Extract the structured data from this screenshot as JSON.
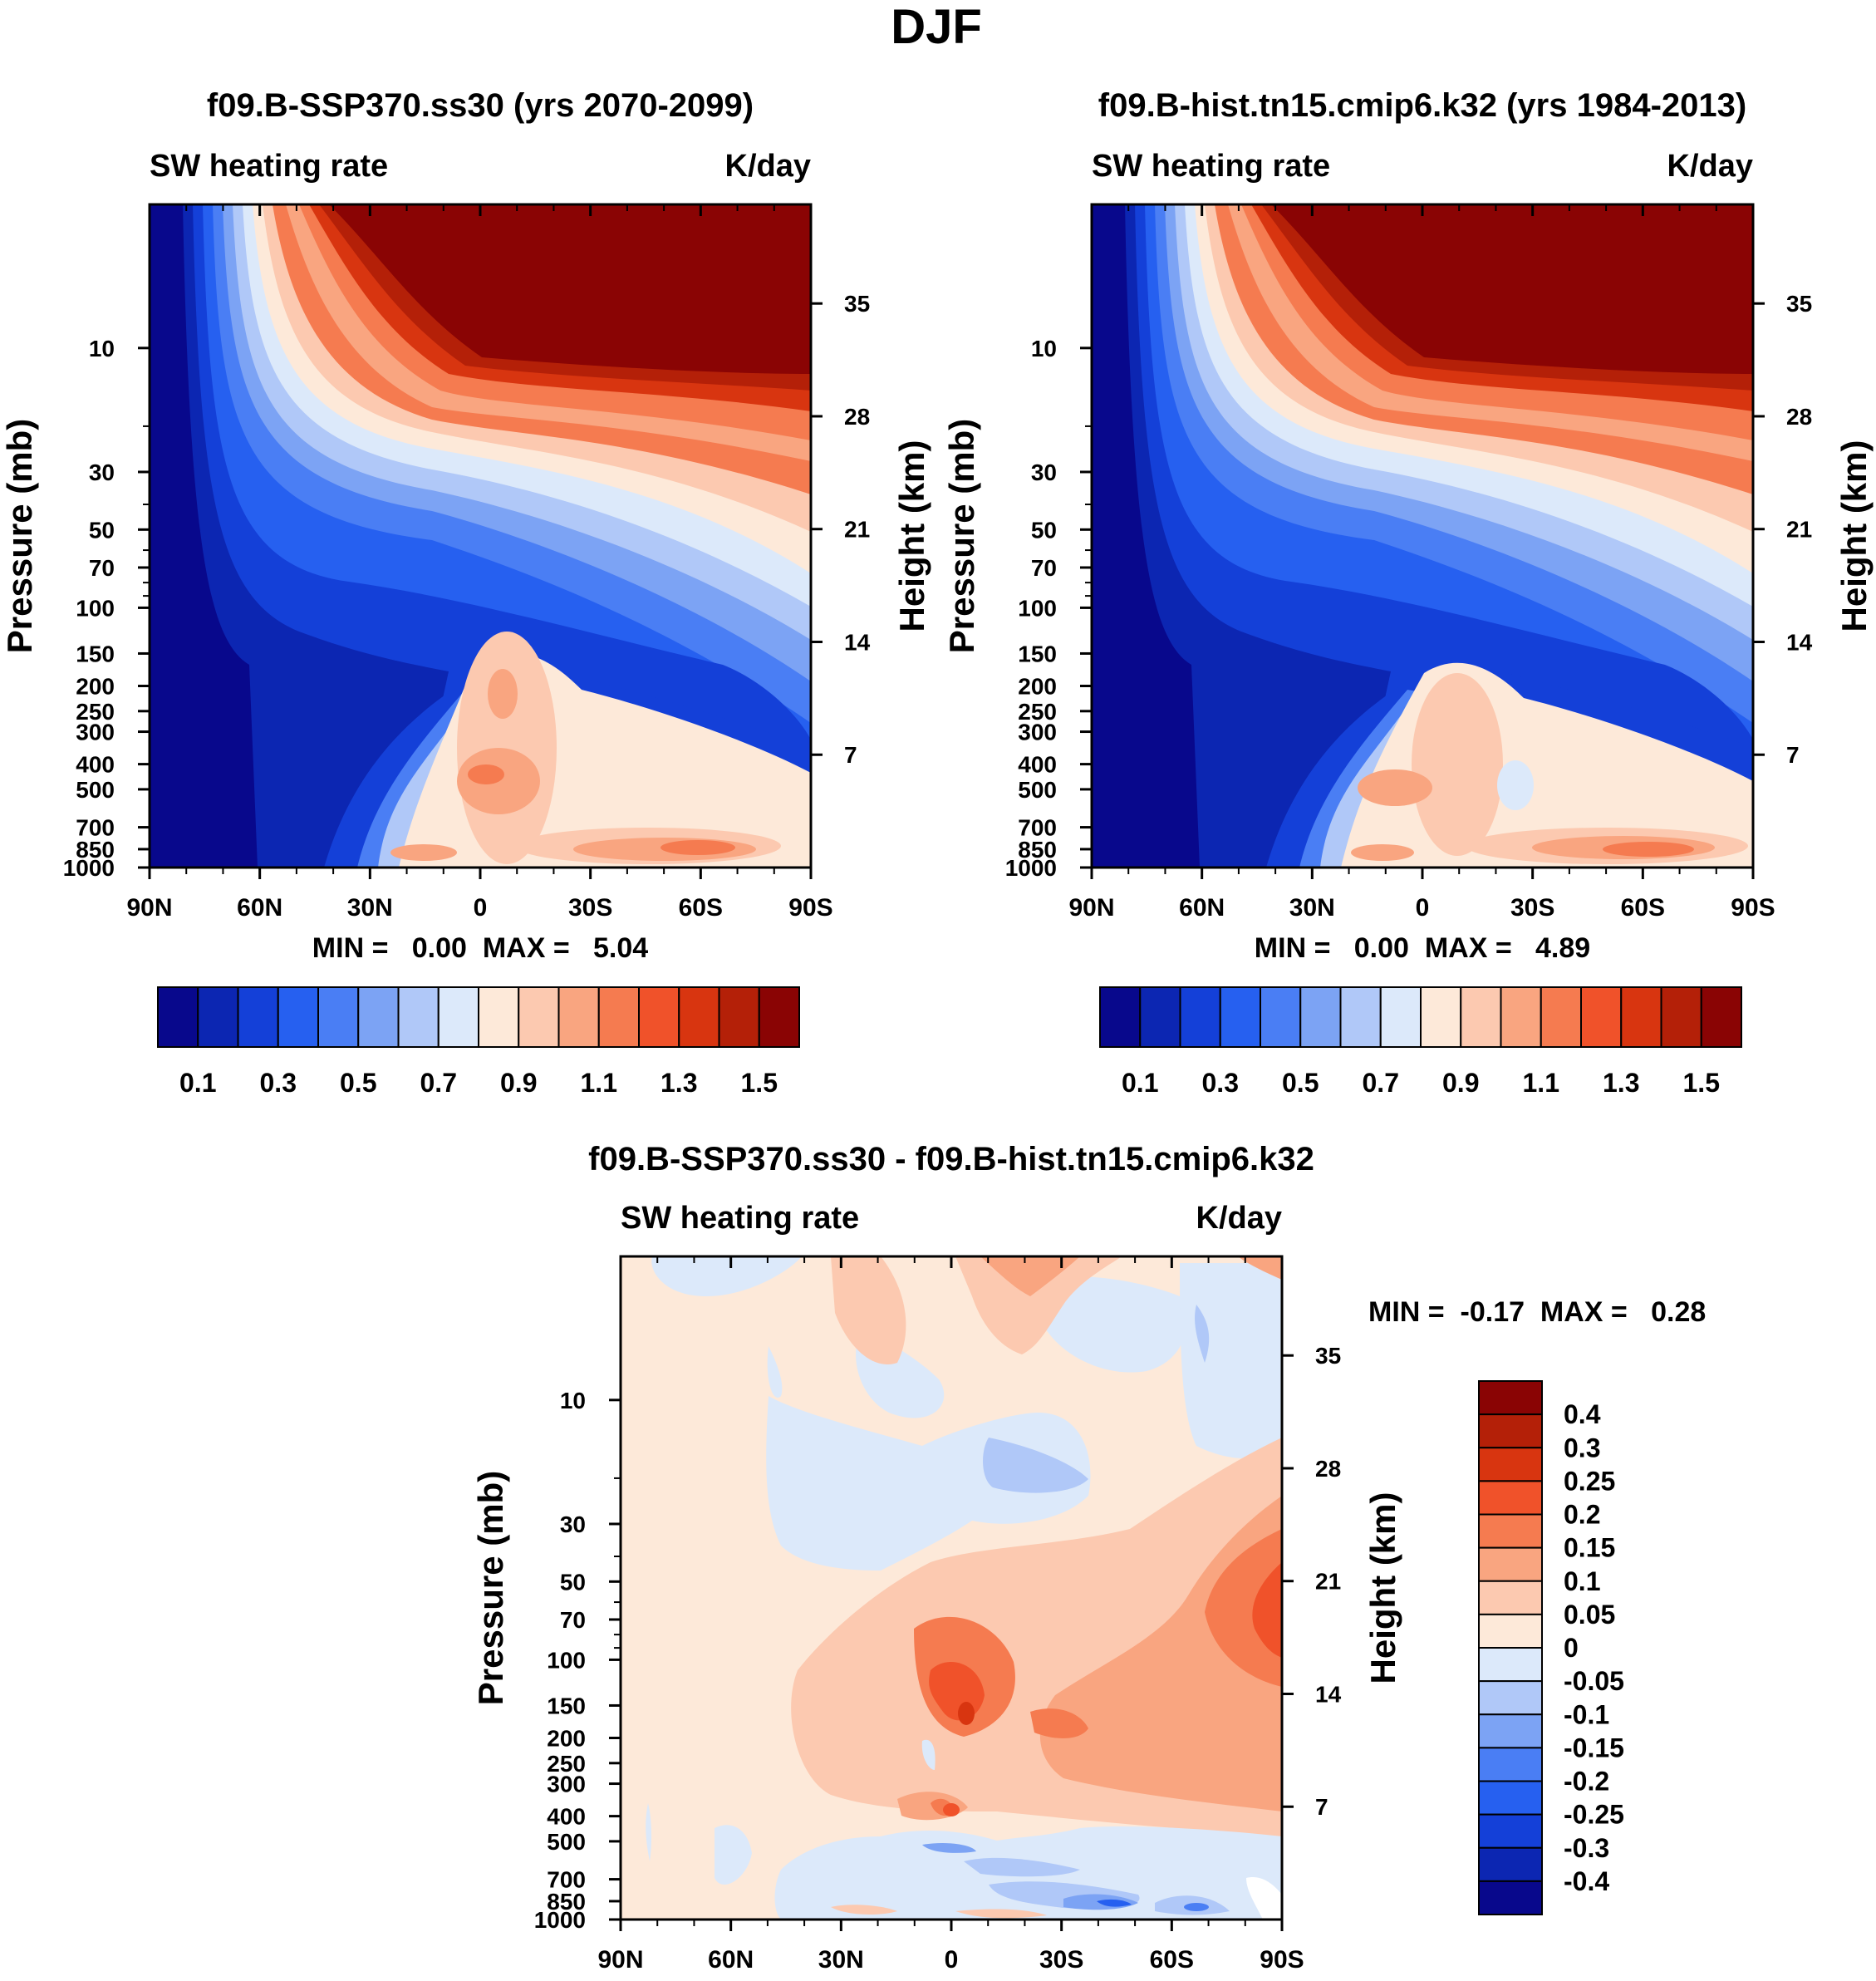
{
  "figure": {
    "title": "DJF"
  },
  "chart_data": [
    {
      "type": "heatmap",
      "title": "f09.B-SSP370.ss30 (yrs 2070-2099)",
      "left_string": "SW heating rate",
      "right_string": "K/day",
      "ylabel": "Pressure (mb)",
      "ylabel_right": "Height (km)",
      "x_ticks": [
        "90N",
        "60N",
        "30N",
        "0",
        "30S",
        "60S",
        "90S"
      ],
      "y_ticks": [
        "10",
        "30",
        "50",
        "70",
        "100",
        "150",
        "200",
        "250",
        "300",
        "400",
        "500",
        "700",
        "850",
        "1000"
      ],
      "y_ticks_right": [
        "35",
        "28",
        "21",
        "14",
        "7"
      ],
      "minmax_label": "MIN =   0.00  MAX =   5.04",
      "min": 0.0,
      "max": 5.04,
      "colorbar_labels": [
        "0.1",
        "0.3",
        "0.5",
        "0.7",
        "0.9",
        "1.1",
        "1.3",
        "1.5"
      ],
      "colorbar_levels": [
        0.1,
        0.2,
        0.3,
        0.4,
        0.5,
        0.6,
        0.7,
        0.8,
        0.9,
        1.0,
        1.1,
        1.2,
        1.3,
        1.4,
        1.5
      ]
    },
    {
      "type": "heatmap",
      "title": "f09.B-hist.tn15.cmip6.k32 (yrs 1984-2013)",
      "left_string": "SW heating rate",
      "right_string": "K/day",
      "ylabel": "Pressure (mb)",
      "ylabel_right": "Height (km)",
      "x_ticks": [
        "90N",
        "60N",
        "30N",
        "0",
        "30S",
        "60S",
        "90S"
      ],
      "y_ticks": [
        "10",
        "30",
        "50",
        "70",
        "100",
        "150",
        "200",
        "250",
        "300",
        "400",
        "500",
        "700",
        "850",
        "1000"
      ],
      "y_ticks_right": [
        "35",
        "28",
        "21",
        "14",
        "7"
      ],
      "minmax_label": "MIN =   0.00  MAX =   4.89",
      "min": 0.0,
      "max": 4.89,
      "colorbar_labels": [
        "0.1",
        "0.3",
        "0.5",
        "0.7",
        "0.9",
        "1.1",
        "1.3",
        "1.5"
      ],
      "colorbar_levels": [
        0.1,
        0.2,
        0.3,
        0.4,
        0.5,
        0.6,
        0.7,
        0.8,
        0.9,
        1.0,
        1.1,
        1.2,
        1.3,
        1.4,
        1.5
      ]
    },
    {
      "type": "heatmap",
      "title": "f09.B-SSP370.ss30 - f09.B-hist.tn15.cmip6.k32",
      "left_string": "SW heating rate",
      "right_string": "K/day",
      "ylabel": "Pressure (mb)",
      "ylabel_right": "Height (km)",
      "x_ticks": [
        "90N",
        "60N",
        "30N",
        "0",
        "30S",
        "60S",
        "90S"
      ],
      "y_ticks": [
        "10",
        "30",
        "50",
        "70",
        "100",
        "150",
        "200",
        "250",
        "300",
        "400",
        "500",
        "700",
        "850",
        "1000"
      ],
      "y_ticks_right": [
        "35",
        "28",
        "21",
        "14",
        "7"
      ],
      "minmax_label": "MIN =  -0.17  MAX =   0.28",
      "min": -0.17,
      "max": 0.28,
      "colorbar_labels": [
        "0.4",
        "0.3",
        "0.25",
        "0.2",
        "0.15",
        "0.1",
        "0.05",
        "0",
        "-0.05",
        "-0.1",
        "-0.15",
        "-0.2",
        "-0.25",
        "-0.3",
        "-0.4"
      ],
      "colorbar_levels": [
        -0.4,
        -0.3,
        -0.25,
        -0.2,
        -0.15,
        -0.1,
        -0.05,
        0,
        0.05,
        0.1,
        0.15,
        0.2,
        0.25,
        0.3,
        0.4
      ]
    }
  ],
  "palette": [
    "#08088c",
    "#0c26b2",
    "#1440d8",
    "#2660f0",
    "#4a7ef4",
    "#7ca3f4",
    "#b0c8f8",
    "#dce9fa",
    "#fde9d9",
    "#fcc9b0",
    "#f9a580",
    "#f57b50",
    "#f0522a",
    "#d83510",
    "#b42008",
    "#8a0404"
  ]
}
